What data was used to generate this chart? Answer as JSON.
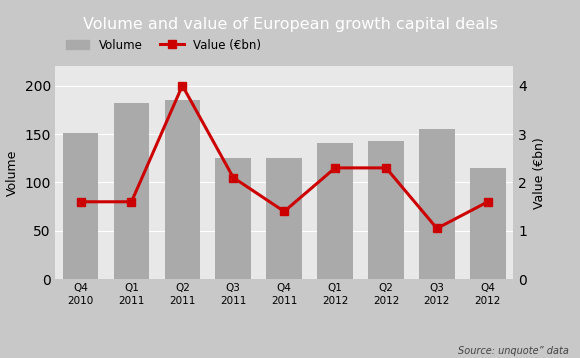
{
  "title": "Volume and value of European growth capital deals",
  "title_bg_color": "#808080",
  "title_text_color": "#ffffff",
  "plot_bg_color": "#e8e8e8",
  "fig_bg_color": "#c8c8c8",
  "categories": [
    "Q4\n2010",
    "Q1\n2011",
    "Q2\n2011",
    "Q3\n2011",
    "Q4\n2011",
    "Q1\n2012",
    "Q2\n2012",
    "Q3\n2012",
    "Q4\n2012"
  ],
  "bar_values": [
    151,
    182,
    185,
    125,
    125,
    141,
    143,
    155,
    115
  ],
  "value_ebn": [
    1.6,
    1.6,
    4.0,
    2.1,
    1.4,
    2.3,
    2.3,
    1.05,
    1.6
  ],
  "bar_color": "#aaaaaa",
  "line_color": "#cc0000",
  "ylabel_left": "Volume",
  "ylabel_right": "Value (€bn)",
  "ylim_left": [
    0,
    220
  ],
  "ylim_right": [
    0,
    4.4
  ],
  "yticks_left": [
    0,
    50,
    100,
    150,
    200
  ],
  "yticks_right": [
    0,
    1,
    2,
    3,
    4
  ],
  "source_text": "Source: unquote” data",
  "legend_volume_label": "Volume",
  "legend_value_label": "Value (€bn)"
}
